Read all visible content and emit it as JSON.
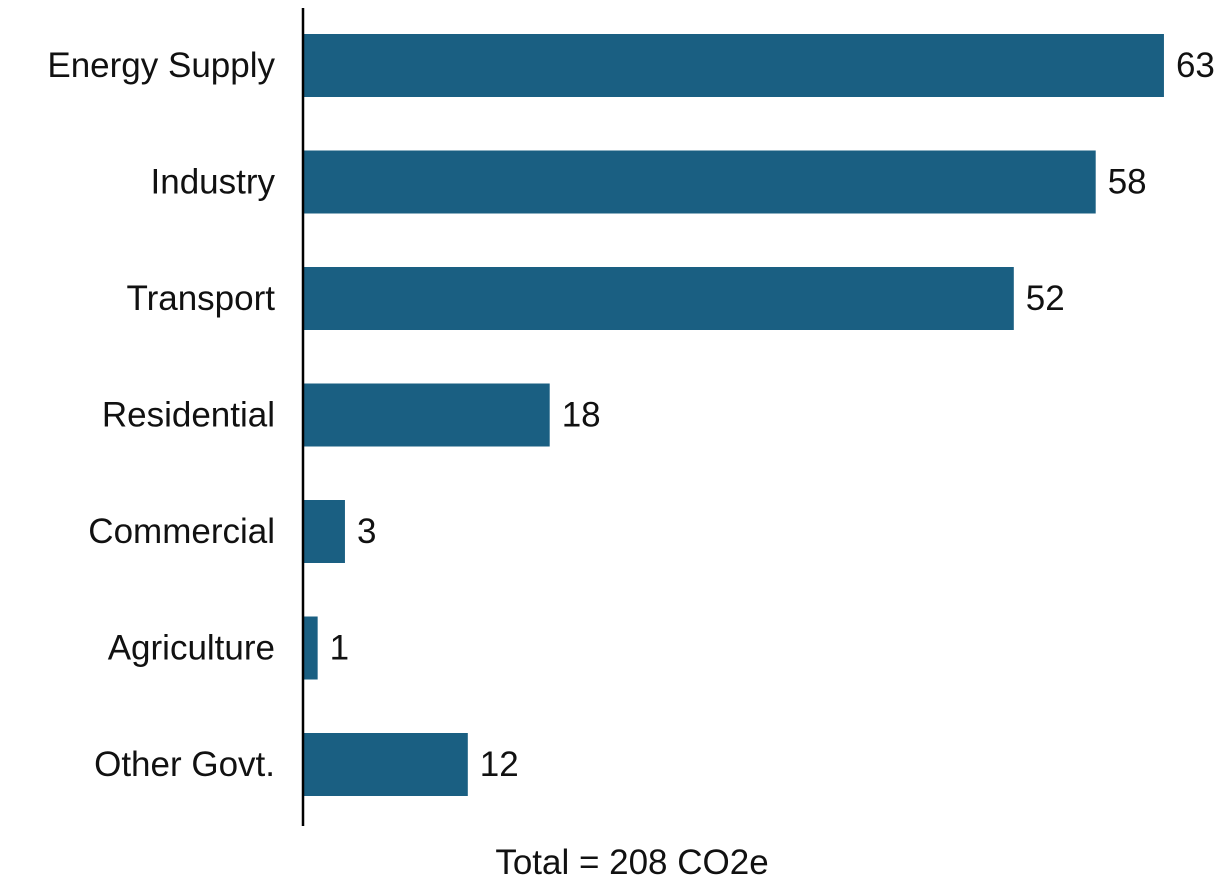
{
  "chart_data": {
    "type": "bar",
    "orientation": "horizontal",
    "categories": [
      "Energy Supply",
      "Industry",
      "Transport",
      "Residential",
      "Commercial",
      "Agriculture",
      "Other Govt."
    ],
    "values": [
      63,
      58,
      52,
      18,
      3,
      1,
      12
    ],
    "xlabel": "Total = 208 CO2e",
    "bar_color": "#1a5f82",
    "axis_color": "#000000",
    "data_labels": true,
    "grid": false,
    "legend": "none"
  }
}
